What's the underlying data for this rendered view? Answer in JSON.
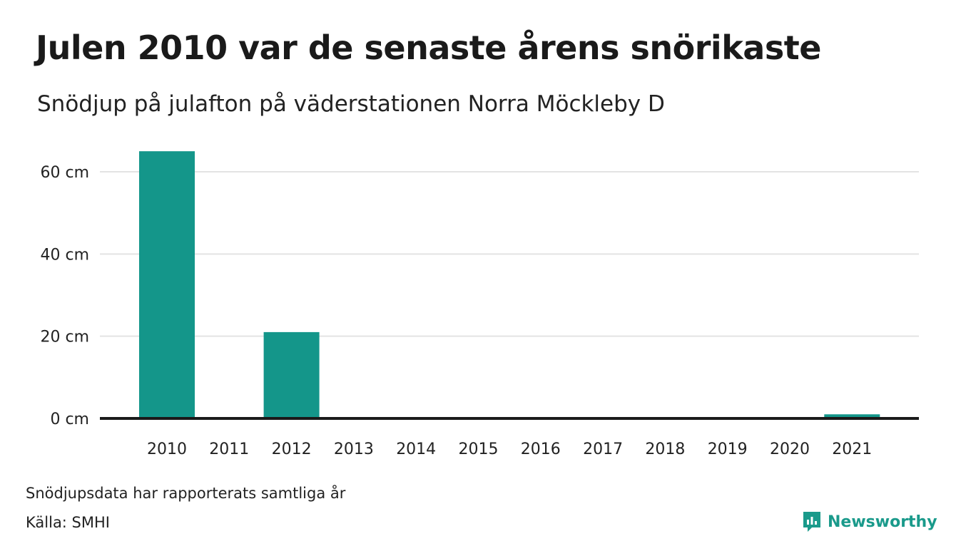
{
  "header": {
    "title": "Julen 2010 var de senaste årens snörikaste",
    "subtitle": "Snödjup på julafton på väderstationen Norra Möckleby D"
  },
  "footer": {
    "note": "Snödjupsdata har rapporterats samtliga år",
    "source": "Källa: SMHI",
    "brand": "Newsworthy",
    "brand_icon": "newsworthy-logo-icon"
  },
  "colors": {
    "bar": "#14968a",
    "grid": "#e3e3e3",
    "baseline": "#1a1a1a",
    "brand": "#1a9a8b"
  },
  "chart_data": {
    "type": "bar",
    "title": "Julen 2010 var de senaste årens snörikaste",
    "subtitle": "Snödjup på julafton på väderstationen Norra Möckleby D",
    "categories": [
      "2010",
      "2011",
      "2012",
      "2013",
      "2014",
      "2015",
      "2016",
      "2017",
      "2018",
      "2019",
      "2020",
      "2021"
    ],
    "values": [
      65,
      0,
      21,
      0,
      0,
      0,
      0,
      0,
      0,
      0,
      0,
      1
    ],
    "unit": "cm",
    "ylim": [
      0,
      60
    ],
    "yticks": [
      0,
      20,
      40,
      60
    ],
    "ytick_labels": [
      "0 cm",
      "20 cm",
      "40 cm",
      "60 cm"
    ],
    "grid": true,
    "legend": "none"
  }
}
